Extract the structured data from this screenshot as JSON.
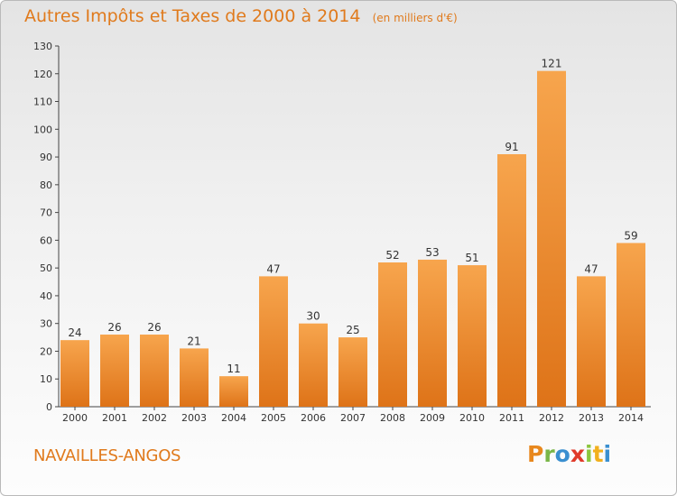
{
  "chart_data": {
    "type": "bar",
    "title": "Autres Impôts et Taxes de 2000 à 2014",
    "unit": "(en milliers d'€)",
    "categories": [
      "2000",
      "2001",
      "2002",
      "2003",
      "2004",
      "2005",
      "2006",
      "2007",
      "2008",
      "2009",
      "2010",
      "2011",
      "2012",
      "2013",
      "2014"
    ],
    "values": [
      24,
      26,
      26,
      21,
      11,
      47,
      30,
      25,
      52,
      53,
      51,
      91,
      121,
      47,
      59
    ],
    "ylim": [
      0,
      130
    ],
    "yticks": [
      0,
      10,
      20,
      30,
      40,
      50,
      60,
      70,
      80,
      90,
      100,
      110,
      120,
      130
    ],
    "grid": false,
    "colors": {
      "bar_top": "#f7a54d",
      "bar_bottom": "#de7318",
      "text_accent": "#e07a1c"
    }
  },
  "commune": "NAVAILLES-ANGOS",
  "logo": {
    "text": "Proxiti",
    "letters": [
      {
        "ch": "P",
        "color": "#e8881e"
      },
      {
        "ch": "r",
        "color": "#7ab648"
      },
      {
        "ch": "o",
        "color": "#3a8fd0"
      },
      {
        "ch": "x",
        "color": "#e03a2a"
      },
      {
        "ch": "i",
        "color": "#8cc63f"
      },
      {
        "ch": "t",
        "color": "#f2b01e"
      },
      {
        "ch": "i",
        "color": "#3a8fd0"
      }
    ]
  }
}
